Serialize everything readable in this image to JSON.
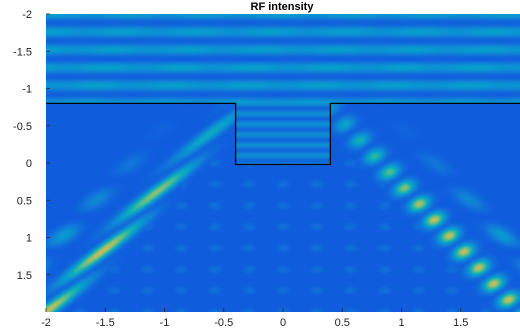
{
  "chart_data": {
    "type": "heatmap",
    "title": "RF intensity",
    "xlabel": "",
    "ylabel": "",
    "xlim": [
      -2,
      2
    ],
    "ylim": [
      -2,
      2
    ],
    "y_axis_direction": "down",
    "colormap": "parula",
    "grid": false,
    "x_ticks": [
      {
        "value": -2,
        "label": "-2"
      },
      {
        "value": -1.5,
        "label": "-1.5"
      },
      {
        "value": -1,
        "label": "-1"
      },
      {
        "value": -0.5,
        "label": "-0.5"
      },
      {
        "value": 0,
        "label": "0"
      },
      {
        "value": 0.5,
        "label": "0.5"
      },
      {
        "value": 1,
        "label": "1"
      },
      {
        "value": 1.5,
        "label": "1.5"
      }
    ],
    "y_ticks": [
      {
        "value": -2,
        "label": "-2"
      },
      {
        "value": -1.5,
        "label": "-1.5"
      },
      {
        "value": -1,
        "label": "-1"
      },
      {
        "value": -0.5,
        "label": "-0.5"
      },
      {
        "value": 0,
        "label": "0"
      },
      {
        "value": 0.5,
        "label": "0.5"
      },
      {
        "value": 1,
        "label": "1"
      },
      {
        "value": 1.5,
        "label": "1.5"
      }
    ],
    "boundary": {
      "color": "#000000",
      "points": [
        [
          -2,
          -0.8
        ],
        [
          -0.4,
          -0.8
        ],
        [
          -0.4,
          0.02
        ],
        [
          0.4,
          0.02
        ],
        [
          0.4,
          -0.8
        ],
        [
          2,
          -0.8
        ]
      ]
    },
    "field_features": {
      "upper_region": {
        "y_range": [
          -2,
          -0.8
        ],
        "fringe_period": 0.24,
        "level": "low-medium"
      },
      "beams": [
        {
          "side": "left",
          "from": [
            -0.45,
            -0.65
          ],
          "to": [
            -2,
            2
          ],
          "peak_level": "high"
        },
        {
          "side": "right",
          "from": [
            0.45,
            -0.65
          ],
          "to": [
            2,
            2
          ],
          "peak_level": "high"
        }
      ],
      "central_region": {
        "level": "low",
        "pattern": "checkerboard interference"
      }
    }
  }
}
